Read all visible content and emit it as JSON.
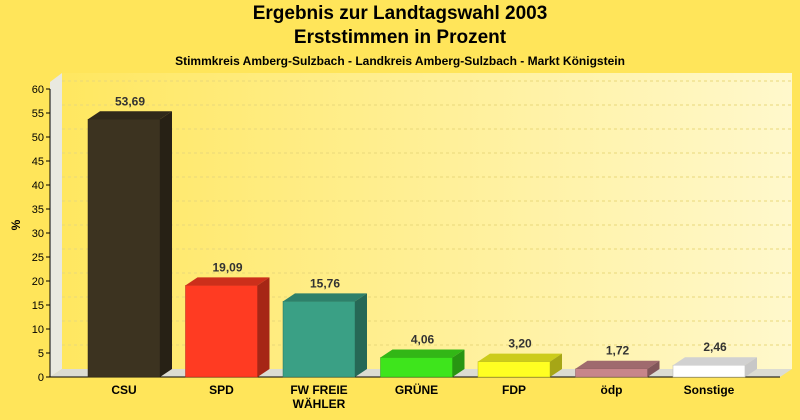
{
  "chart_data": {
    "type": "bar",
    "title": "Ergebnis zur Landtagswahl 2003",
    "subtitle_line": "Erststimmen in Prozent",
    "caption": "Stimmkreis Amberg-Sulzbach - Landkreis Amberg-Sulzbach - Markt Königstein",
    "ylabel": "%",
    "ylim": [
      0,
      60
    ],
    "yticks": [
      "0",
      "5",
      "10",
      "15",
      "20",
      "25",
      "30",
      "35",
      "40",
      "45",
      "50",
      "55",
      "60"
    ],
    "grid": true,
    "categories": [
      [
        "CSU"
      ],
      [
        "SPD"
      ],
      [
        "FW FREIE",
        "WÄHLER"
      ],
      [
        "GRÜNE"
      ],
      [
        "FDP"
      ],
      [
        "ödp"
      ],
      [
        "Sonstige"
      ]
    ],
    "values": [
      53.69,
      19.09,
      15.76,
      4.06,
      3.2,
      1.72,
      2.46
    ],
    "value_labels": [
      "53,69",
      "19,09",
      "15,76",
      "4,06",
      "3,20",
      "1,72",
      "2,46"
    ],
    "colors": [
      "#3C3320",
      "#FF3B22",
      "#3AA085",
      "#3EE51C",
      "#FFFF22",
      "#C7858A",
      "#FFFFFF"
    ]
  }
}
